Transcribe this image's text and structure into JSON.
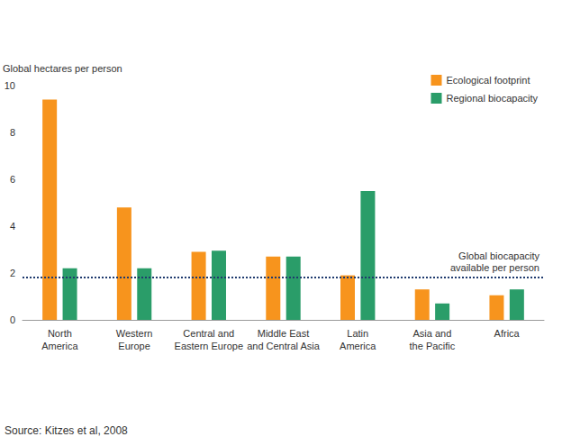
{
  "chart_data": {
    "type": "bar",
    "y_label": "Global hectares per person",
    "categories": [
      "North\nAmerica",
      "Western\nEurope",
      "Central and\nEastern Europe",
      "Middle East\nand Central Asia",
      "Latin\nAmerica",
      "Asia and\nthe Pacific",
      "Africa"
    ],
    "series": [
      {
        "name": "Ecological footprint",
        "color": "#f7941d",
        "values": [
          9.4,
          4.8,
          2.9,
          2.7,
          1.9,
          1.3,
          1.05
        ]
      },
      {
        "name": "Regional biocapacity",
        "color": "#2a9d69",
        "values": [
          2.2,
          2.2,
          2.95,
          2.7,
          5.5,
          0.7,
          1.3
        ]
      }
    ],
    "hline": {
      "value": 1.8,
      "label": "Global biocapacity\navailable per person",
      "color": "#1f3a6e",
      "line_style": "dotted"
    },
    "ylim": [
      0,
      10
    ],
    "yticks": [
      0,
      2,
      4,
      6,
      8,
      10
    ],
    "grid": false,
    "legend": "upper right",
    "source": "Source: Kitzes et al, 2008"
  }
}
